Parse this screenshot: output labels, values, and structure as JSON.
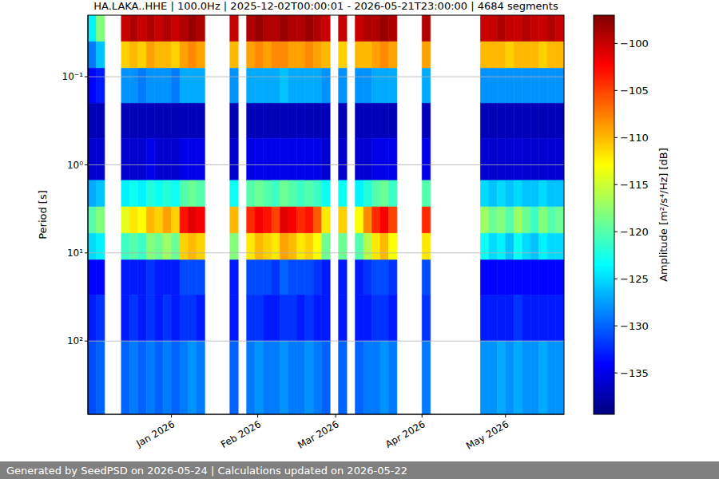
{
  "chart_data": {
    "type": "heatmap",
    "title": "HA.LAKA..HHE | 100.0Hz | 2025-12-02T00:00:01 - 2026-05-21T23:00:00 | 4684 segments",
    "y_label": "Period [s]",
    "log": "y",
    "grid": true,
    "xlim": [
      "2025-12-02",
      "2026-05-22"
    ],
    "xticks": [
      {
        "value": "2026-01-01",
        "label": "Jan 2026"
      },
      {
        "value": "2026-02-01",
        "label": "Feb 2026"
      },
      {
        "value": "2026-03-01",
        "label": "Mar 2026"
      },
      {
        "value": "2026-04-01",
        "label": "Apr 2026"
      },
      {
        "value": "2026-05-01",
        "label": "May 2026"
      }
    ],
    "ylim": [
      0.02,
      680
    ],
    "yticks": [
      {
        "value": 0.1,
        "label": "10⁻¹"
      },
      {
        "value": 1,
        "label": "10⁰"
      },
      {
        "value": 10,
        "label": "10¹"
      },
      {
        "value": 100,
        "label": "10²"
      }
    ],
    "x": [
      "2025-12-02",
      "2025-12-05",
      "2025-12-08",
      "2025-12-11",
      "2025-12-14",
      "2025-12-17",
      "2025-12-20",
      "2025-12-23",
      "2025-12-26",
      "2025-12-29",
      "2026-01-01",
      "2026-01-04",
      "2026-01-07",
      "2026-01-10",
      "2026-01-13",
      "2026-01-16",
      "2026-01-19",
      "2026-01-22",
      "2026-01-25",
      "2026-01-28",
      "2026-01-31",
      "2026-02-03",
      "2026-02-06",
      "2026-02-09",
      "2026-02-12",
      "2026-02-15",
      "2026-02-18",
      "2026-02-21",
      "2026-02-24",
      "2026-02-27",
      "2026-03-02",
      "2026-03-05",
      "2026-03-08",
      "2026-03-11",
      "2026-03-14",
      "2026-03-17",
      "2026-03-20",
      "2026-03-23",
      "2026-03-26",
      "2026-03-29",
      "2026-04-01",
      "2026-04-04",
      "2026-04-07",
      "2026-04-10",
      "2026-04-13",
      "2026-04-16",
      "2026-04-19",
      "2026-04-22",
      "2026-04-25",
      "2026-04-28",
      "2026-05-01",
      "2026-05-04",
      "2026-05-07",
      "2026-05-10",
      "2026-05-13",
      "2026-05-16",
      "2026-05-19"
    ],
    "period_edges": [
      0.02,
      0.04,
      0.08,
      0.2,
      0.5,
      1.5,
      3,
      6,
      12,
      30,
      100,
      680
    ],
    "cells": [
      [
        -124,
        -129,
        -134,
        -137,
        -136,
        -127,
        -120,
        -125,
        -134,
        -133,
        -131
      ],
      [
        -118,
        -126,
        -133,
        -137,
        -136,
        -126,
        -118,
        -124,
        -134,
        -132,
        -130
      ],
      null,
      null,
      [
        -100,
        -111,
        -128,
        -137,
        -136,
        -124,
        -114,
        -121,
        -133,
        -133,
        -130
      ],
      [
        -99,
        -110,
        -128,
        -137,
        -136,
        -123,
        -112,
        -120,
        -133,
        -132,
        -129
      ],
      [
        -100,
        -111,
        -129,
        -137,
        -136,
        -124,
        -113,
        -121,
        -133,
        -133,
        -130
      ],
      [
        -99,
        -109,
        -128,
        -137,
        -135,
        -122,
        -110,
        -118,
        -132,
        -132,
        -129
      ],
      [
        -100,
        -110,
        -128,
        -137,
        -136,
        -123,
        -111,
        -119,
        -133,
        -133,
        -130
      ],
      [
        -99,
        -110,
        -128,
        -137,
        -136,
        -122,
        -109,
        -117,
        -133,
        -132,
        -129
      ],
      [
        -100,
        -111,
        -129,
        -137,
        -136,
        -123,
        -111,
        -119,
        -133,
        -133,
        -130
      ],
      [
        -99,
        -109,
        -127,
        -137,
        -135,
        -120,
        -103,
        -111,
        -131,
        -132,
        -129
      ],
      [
        -98,
        -108,
        -127,
        -137,
        -135,
        -119,
        -101,
        -110,
        -131,
        -132,
        -128
      ],
      [
        -99,
        -109,
        -127,
        -137,
        -135,
        -120,
        -102,
        -111,
        -131,
        -133,
        -129
      ],
      null,
      null,
      null,
      [
        -100,
        -110,
        -128,
        -137,
        -136,
        -123,
        -110,
        -118,
        -133,
        -133,
        -130
      ],
      null,
      [
        -99,
        -109,
        -127,
        -137,
        -135,
        -120,
        -104,
        -112,
        -131,
        -132,
        -129
      ],
      [
        -98,
        -108,
        -127,
        -137,
        -135,
        -119,
        -102,
        -110,
        -131,
        -132,
        -128
      ],
      [
        -99,
        -109,
        -127,
        -137,
        -135,
        -120,
        -103,
        -111,
        -131,
        -133,
        -129
      ],
      [
        -99,
        -108,
        -127,
        -137,
        -135,
        -121,
        -105,
        -112,
        -132,
        -133,
        -129
      ],
      [
        -98,
        -108,
        -126,
        -137,
        -135,
        -119,
        -101,
        -109,
        -130,
        -132,
        -128
      ],
      [
        -99,
        -109,
        -127,
        -137,
        -135,
        -120,
        -102,
        -110,
        -131,
        -132,
        -129
      ],
      [
        -99,
        -109,
        -127,
        -137,
        -135,
        -121,
        -104,
        -112,
        -131,
        -133,
        -129
      ],
      [
        -98,
        -108,
        -127,
        -137,
        -135,
        -120,
        -103,
        -111,
        -131,
        -132,
        -128
      ],
      [
        -99,
        -109,
        -127,
        -137,
        -135,
        -121,
        -106,
        -113,
        -132,
        -133,
        -129
      ],
      [
        -100,
        -110,
        -128,
        -137,
        -136,
        -123,
        -112,
        -119,
        -133,
        -133,
        -130
      ],
      null,
      [
        -100,
        -111,
        -128,
        -137,
        -136,
        -123,
        -111,
        -119,
        -133,
        -133,
        -130
      ],
      null,
      [
        -100,
        -110,
        -128,
        -137,
        -136,
        -124,
        -113,
        -120,
        -133,
        -133,
        -130
      ],
      [
        -99,
        -110,
        -128,
        -137,
        -136,
        -122,
        -108,
        -116,
        -132,
        -133,
        -129
      ],
      [
        -99,
        -109,
        -127,
        -137,
        -135,
        -120,
        -104,
        -112,
        -131,
        -132,
        -129
      ],
      [
        -98,
        -108,
        -127,
        -137,
        -135,
        -119,
        -102,
        -110,
        -131,
        -132,
        -128
      ],
      [
        -99,
        -109,
        -127,
        -137,
        -135,
        -121,
        -105,
        -113,
        -132,
        -133,
        -129
      ],
      null,
      null,
      null,
      [
        -99,
        -109,
        -127,
        -137,
        -135,
        -120,
        -104,
        -112,
        -131,
        -132,
        -129
      ],
      null,
      null,
      null,
      null,
      null,
      null,
      [
        -100,
        -110,
        -128,
        -137,
        -136,
        -125,
        -117,
        -123,
        -134,
        -133,
        -128
      ],
      [
        -100,
        -110,
        -128,
        -137,
        -136,
        -126,
        -119,
        -125,
        -134,
        -133,
        -128
      ],
      [
        -99,
        -110,
        -128,
        -137,
        -136,
        -125,
        -118,
        -124,
        -134,
        -133,
        -127
      ],
      [
        -100,
        -111,
        -128,
        -137,
        -136,
        -126,
        -120,
        -126,
        -134,
        -133,
        -128
      ],
      [
        -100,
        -110,
        -128,
        -137,
        -136,
        -125,
        -117,
        -123,
        -134,
        -132,
        -127
      ],
      [
        -99,
        -110,
        -128,
        -137,
        -136,
        -126,
        -119,
        -125,
        -134,
        -133,
        -128
      ],
      [
        -100,
        -110,
        -128,
        -137,
        -136,
        -126,
        -121,
        -126,
        -134,
        -133,
        -128
      ],
      [
        -100,
        -111,
        -128,
        -137,
        -136,
        -125,
        -118,
        -124,
        -134,
        -133,
        -127
      ],
      [
        -99,
        -110,
        -128,
        -137,
        -136,
        -126,
        -120,
        -125,
        -134,
        -133,
        -128
      ],
      [
        -100,
        -110,
        -128,
        -137,
        -136,
        -126,
        -119,
        -125,
        -134,
        -133,
        -128
      ]
    ],
    "colorbar": {
      "label": "Amplitude [m²/s⁴/Hz] [dB]",
      "range": [
        -139.4,
        -97.0
      ],
      "ticks": [
        {
          "value": -100,
          "label": "−100"
        },
        {
          "value": -105,
          "label": "−105"
        },
        {
          "value": -110,
          "label": "−110"
        },
        {
          "value": -115,
          "label": "−115"
        },
        {
          "value": -120,
          "label": "−120"
        },
        {
          "value": -125,
          "label": "−125"
        },
        {
          "value": -130,
          "label": "−130"
        },
        {
          "value": -135,
          "label": "−135"
        }
      ]
    },
    "footer": "Generated by SeedPSD on 2026-05-24 | Calculations updated on 2026-05-22"
  }
}
